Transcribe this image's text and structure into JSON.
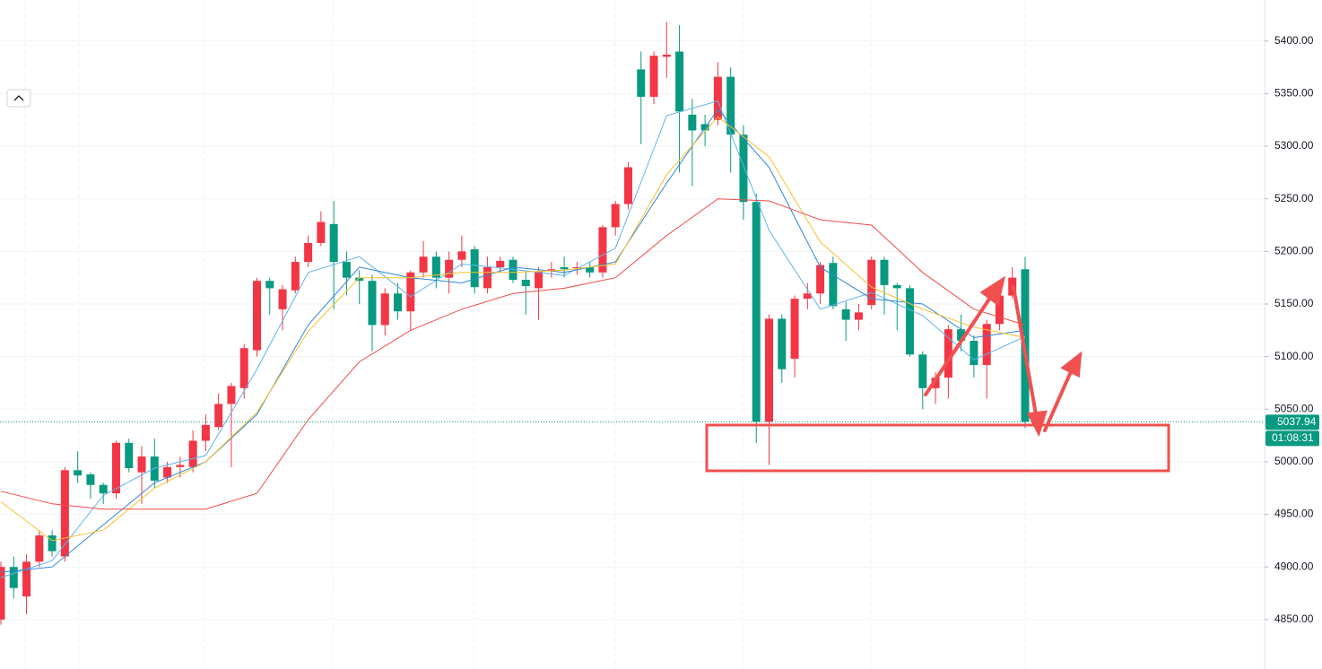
{
  "chart_data": {
    "type": "candlestick",
    "up_color": "#f23645",
    "down_color": "#089981",
    "open": [
      4850,
      4900,
      4872,
      4905,
      4930,
      4910,
      4992,
      4988,
      4978,
      4970,
      5018,
      4990,
      5005,
      4985,
      4995,
      4995,
      5020,
      5033,
      5055,
      5070,
      5106,
      5172,
      5145,
      5163,
      5190,
      5208,
      5226,
      5190,
      5175,
      5172,
      5130,
      5160,
      5143,
      5180,
      5195,
      5175,
      5192,
      5202,
      5165,
      5185,
      5192,
      5173,
      5165,
      5182,
      5185,
      5184,
      5185,
      5180,
      5223,
      5245,
      5373,
      5347,
      5385,
      5390,
      5330,
      5321,
      5325,
      5366,
      5311,
      5247,
      5038,
      5136,
      5098,
      5155,
      5160,
      5189,
      5145,
      5135,
      5149,
      5192,
      5168,
      5165,
      5102,
      5070,
      5080,
      5126,
      5115,
      5092,
      5131,
      5158,
      5183
    ],
    "high": [
      4905,
      4910,
      4912,
      4935,
      4935,
      4995,
      5010,
      4990,
      4980,
      5020,
      5022,
      5015,
      5022,
      5000,
      5005,
      5030,
      5045,
      5065,
      5075,
      5112,
      5175,
      5175,
      5168,
      5195,
      5215,
      5238,
      5248,
      5200,
      5182,
      5178,
      5165,
      5170,
      5182,
      5210,
      5200,
      5200,
      5215,
      5205,
      5195,
      5195,
      5195,
      5180,
      5185,
      5190,
      5195,
      5190,
      5190,
      5225,
      5248,
      5285,
      5390,
      5390,
      5418,
      5415,
      5345,
      5330,
      5380,
      5375,
      5320,
      5255,
      5140,
      5140,
      5158,
      5170,
      5190,
      5195,
      5152,
      5150,
      5195,
      5195,
      5170,
      5168,
      5105,
      5085,
      5130,
      5140,
      5120,
      5135,
      5165,
      5185,
      5195
    ],
    "low": [
      4845,
      4870,
      4855,
      4900,
      4910,
      4905,
      4980,
      4965,
      4960,
      4965,
      4990,
      4960,
      4975,
      4980,
      4985,
      4990,
      5010,
      5030,
      4995,
      5060,
      5100,
      5140,
      5125,
      5160,
      5185,
      5205,
      5145,
      5158,
      5150,
      5105,
      5120,
      5135,
      5125,
      5175,
      5165,
      5160,
      5185,
      5160,
      5160,
      5180,
      5170,
      5140,
      5135,
      5175,
      5175,
      5178,
      5175,
      5175,
      5215,
      5240,
      5302,
      5340,
      5365,
      5275,
      5262,
      5300,
      5320,
      5275,
      5230,
      5018,
      4997,
      5075,
      5080,
      5145,
      5150,
      5145,
      5115,
      5125,
      5145,
      5140,
      5125,
      5100,
      5050,
      5055,
      5060,
      5105,
      5080,
      5060,
      5125,
      5155,
      5032
    ],
    "close": [
      4900,
      4880,
      4905,
      4930,
      4915,
      4992,
      4987,
      4978,
      4970,
      5018,
      4994,
      5005,
      4982,
      4995,
      4997,
      5020,
      5035,
      5055,
      5072,
      5108,
      5172,
      5165,
      5164,
      5190,
      5208,
      5228,
      5190,
      5175,
      5172,
      5130,
      5160,
      5143,
      5180,
      5195,
      5175,
      5192,
      5200,
      5166,
      5185,
      5191,
      5173,
      5167,
      5181,
      5183,
      5183,
      5185,
      5180,
      5223,
      5245,
      5280,
      5347,
      5386,
      5387,
      5333,
      5315,
      5315,
      5366,
      5311,
      5247,
      5038,
      5136,
      5088,
      5155,
      5160,
      5187,
      5148,
      5135,
      5142,
      5192,
      5168,
      5165,
      5102,
      5070,
      5080,
      5126,
      5115,
      5092,
      5131,
      5158,
      5175,
      5037.94
    ],
    "lines": [
      {
        "color": "#5fb3ec",
        "x": [
          0,
          4,
          8,
          12,
          16,
          20,
          24,
          28,
          32,
          36,
          40,
          44,
          48,
          52,
          56,
          60,
          64,
          68,
          72,
          76,
          80
        ],
        "values": [
          4890,
          4906,
          4968,
          4994,
          5006,
          5088,
          5180,
          5195,
          5157,
          5188,
          5183,
          5177,
          5203,
          5329,
          5343,
          5220,
          5145,
          5161,
          5139,
          5097,
          5119
        ]
      },
      {
        "color": "#2f86d4",
        "x": [
          0,
          4,
          8,
          12,
          16,
          20,
          24,
          28,
          32,
          36,
          40,
          44,
          48,
          52,
          56,
          60,
          64,
          68,
          72,
          76,
          80
        ],
        "values": [
          4895,
          4900,
          4940,
          4980,
          5000,
          5045,
          5130,
          5185,
          5175,
          5170,
          5185,
          5180,
          5190,
          5265,
          5335,
          5280,
          5185,
          5155,
          5150,
          5118,
          5125
        ]
      },
      {
        "color": "#f5c02e",
        "x": [
          0,
          4,
          8,
          12,
          16,
          20,
          24,
          28,
          32,
          36,
          40,
          44,
          48,
          52,
          56,
          60,
          64,
          68,
          72,
          76,
          80
        ],
        "values": [
          4962,
          4925,
          4935,
          4975,
          5000,
          5047,
          5124,
          5175,
          5175,
          5180,
          5180,
          5182,
          5188,
          5273,
          5328,
          5290,
          5209,
          5166,
          5145,
          5128,
          5118
        ]
      },
      {
        "color": "#ef4b4b",
        "x": [
          0,
          4,
          8,
          12,
          16,
          20,
          24,
          28,
          32,
          36,
          40,
          44,
          48,
          52,
          56,
          60,
          64,
          68,
          72,
          76,
          80
        ],
        "values": [
          4972,
          4960,
          4955,
          4955,
          4955,
          4970,
          5040,
          5095,
          5125,
          5145,
          5160,
          5165,
          5175,
          5215,
          5250,
          5248,
          5230,
          5225,
          5180,
          5145,
          5130
        ]
      }
    ],
    "last_price": 5037.94,
    "countdown": "01:08:31",
    "ylim": [
      4803,
      5439
    ],
    "yticks": [
      {
        "value": 4850,
        "label": "4850.00"
      },
      {
        "value": 4900,
        "label": "4900.00"
      },
      {
        "value": 4950,
        "label": "4950.00"
      },
      {
        "value": 5000,
        "label": "5000.00"
      },
      {
        "value": 5050,
        "label": "5050.00"
      },
      {
        "value": 5100,
        "label": "5100.00"
      },
      {
        "value": 5150,
        "label": "5150.00"
      },
      {
        "value": 5200,
        "label": "5200.00"
      },
      {
        "value": 5250,
        "label": "5250.00"
      },
      {
        "value": 5300,
        "label": "5300.00"
      },
      {
        "value": 5350,
        "label": "5350.00"
      },
      {
        "value": 5400,
        "label": "5400.00"
      }
    ],
    "grid": true
  }
}
